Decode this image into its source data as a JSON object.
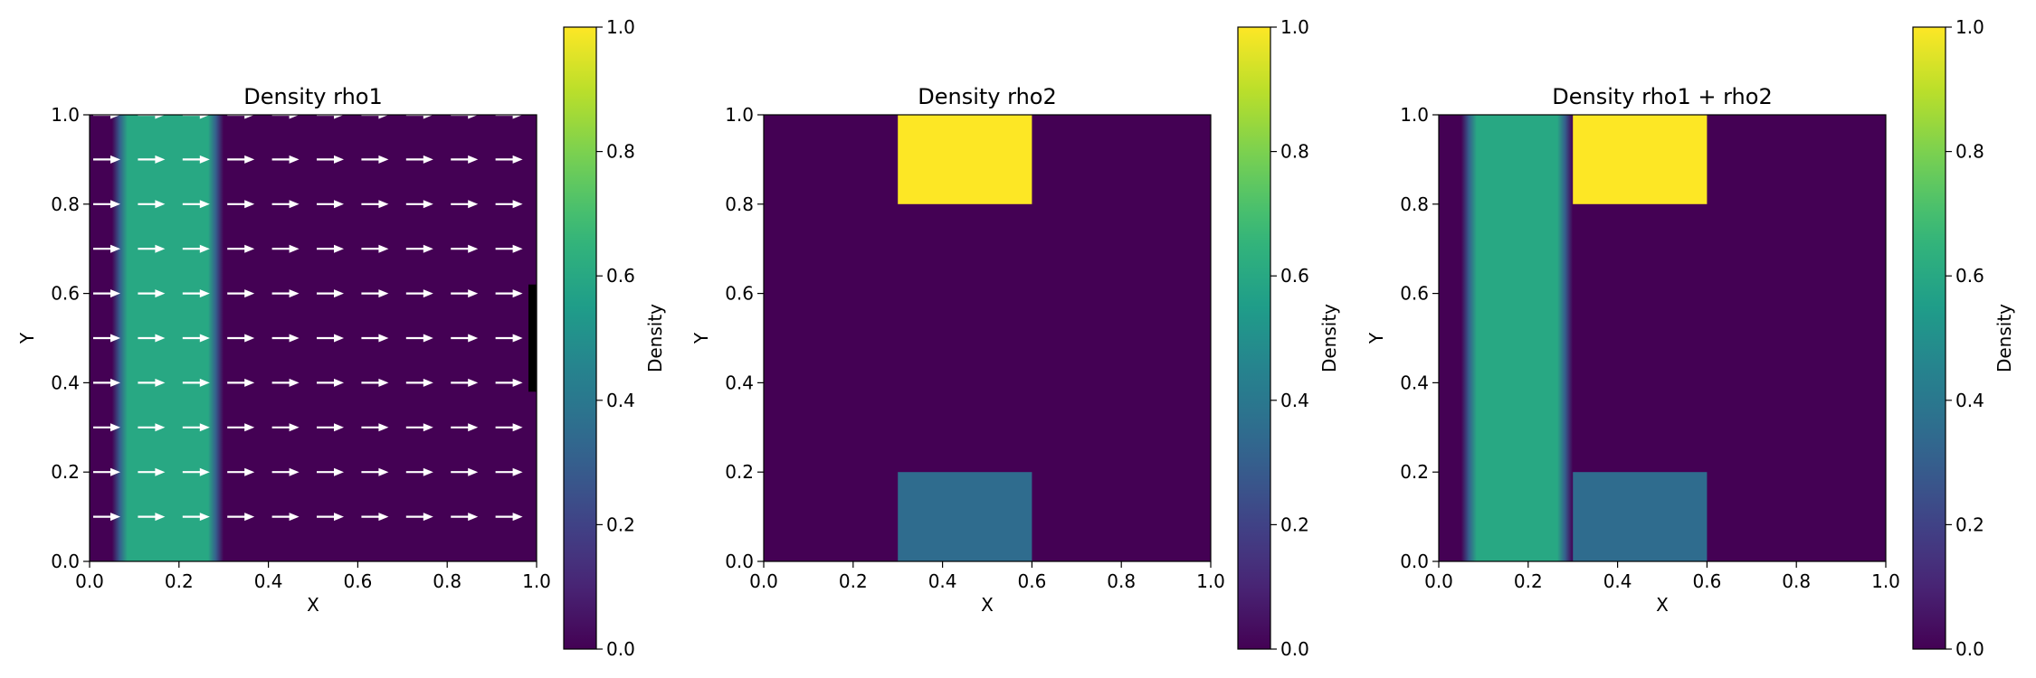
{
  "colormap": {
    "name": "viridis",
    "stops": [
      "#440154",
      "#482878",
      "#3e4989",
      "#31688e",
      "#26828e",
      "#1f9e89",
      "#35b779",
      "#6ece58",
      "#b5de2b",
      "#fde725"
    ]
  },
  "chart_data": [
    {
      "type": "heatmap",
      "title": "Density rho1",
      "xlabel": "X",
      "ylabel": "Y",
      "xlim": [
        0.0,
        1.0
      ],
      "ylim": [
        0.0,
        1.0
      ],
      "xticks": [
        "0.0",
        "0.2",
        "0.4",
        "0.6",
        "0.8",
        "1.0"
      ],
      "yticks": [
        "0.0",
        "0.2",
        "0.4",
        "0.6",
        "0.8",
        "1.0"
      ],
      "colorbar": {
        "label": "Density",
        "range": [
          0.0,
          1.0
        ],
        "ticks": [
          "0.0",
          "0.2",
          "0.4",
          "0.6",
          "0.8",
          "1.0"
        ]
      },
      "regions": [
        {
          "x": [
            0.0,
            1.0
          ],
          "y": [
            0.0,
            1.0
          ],
          "value": 0.0
        },
        {
          "x": [
            0.05,
            0.3
          ],
          "y": [
            0.0,
            1.0
          ],
          "value": 0.6,
          "smooth_edges": true,
          "edge_width": 0.035
        }
      ],
      "quiver": {
        "x": [
          0.0,
          0.1,
          0.2,
          0.3,
          0.4,
          0.5,
          0.6,
          0.7,
          0.8,
          0.9
        ],
        "y": [
          0.1,
          0.2,
          0.3,
          0.4,
          0.5,
          0.6,
          0.7,
          0.8,
          0.9,
          1.0
        ],
        "u": 1.0,
        "v": 0.0,
        "color": "#ffffff"
      },
      "boundary_bar": {
        "x": 1.0,
        "y": [
          0.38,
          0.62
        ],
        "color": "#000000"
      }
    },
    {
      "type": "heatmap",
      "title": "Density rho2",
      "xlabel": "X",
      "ylabel": "Y",
      "xlim": [
        0.0,
        1.0
      ],
      "ylim": [
        0.0,
        1.0
      ],
      "xticks": [
        "0.0",
        "0.2",
        "0.4",
        "0.6",
        "0.8",
        "1.0"
      ],
      "yticks": [
        "0.0",
        "0.2",
        "0.4",
        "0.6",
        "0.8",
        "1.0"
      ],
      "colorbar": {
        "label": "Density",
        "range": [
          0.0,
          1.0
        ],
        "ticks": [
          "0.0",
          "0.2",
          "0.4",
          "0.6",
          "0.8",
          "1.0"
        ]
      },
      "regions": [
        {
          "x": [
            0.0,
            1.0
          ],
          "y": [
            0.0,
            1.0
          ],
          "value": 0.0
        },
        {
          "x": [
            0.3,
            0.6
          ],
          "y": [
            0.8,
            1.0
          ],
          "value": 1.0
        },
        {
          "x": [
            0.3,
            0.6
          ],
          "y": [
            0.0,
            0.2
          ],
          "value": 0.35
        }
      ]
    },
    {
      "type": "heatmap",
      "title": "Density rho1 + rho2",
      "xlabel": "X",
      "ylabel": "Y",
      "xlim": [
        0.0,
        1.0
      ],
      "ylim": [
        0.0,
        1.0
      ],
      "xticks": [
        "0.0",
        "0.2",
        "0.4",
        "0.6",
        "0.8",
        "1.0"
      ],
      "yticks": [
        "0.0",
        "0.2",
        "0.4",
        "0.6",
        "0.8",
        "1.0"
      ],
      "colorbar": {
        "label": "Density",
        "range": [
          0.0,
          1.0
        ],
        "ticks": [
          "0.0",
          "0.2",
          "0.4",
          "0.6",
          "0.8",
          "1.0"
        ]
      },
      "regions": [
        {
          "x": [
            0.0,
            1.0
          ],
          "y": [
            0.0,
            1.0
          ],
          "value": 0.0
        },
        {
          "x": [
            0.05,
            0.3
          ],
          "y": [
            0.0,
            1.0
          ],
          "value": 0.6,
          "smooth_edges": true,
          "edge_width": 0.035
        },
        {
          "x": [
            0.3,
            0.6
          ],
          "y": [
            0.8,
            1.0
          ],
          "value": 1.0
        },
        {
          "x": [
            0.3,
            0.6
          ],
          "y": [
            0.0,
            0.2
          ],
          "value": 0.35
        }
      ]
    }
  ]
}
